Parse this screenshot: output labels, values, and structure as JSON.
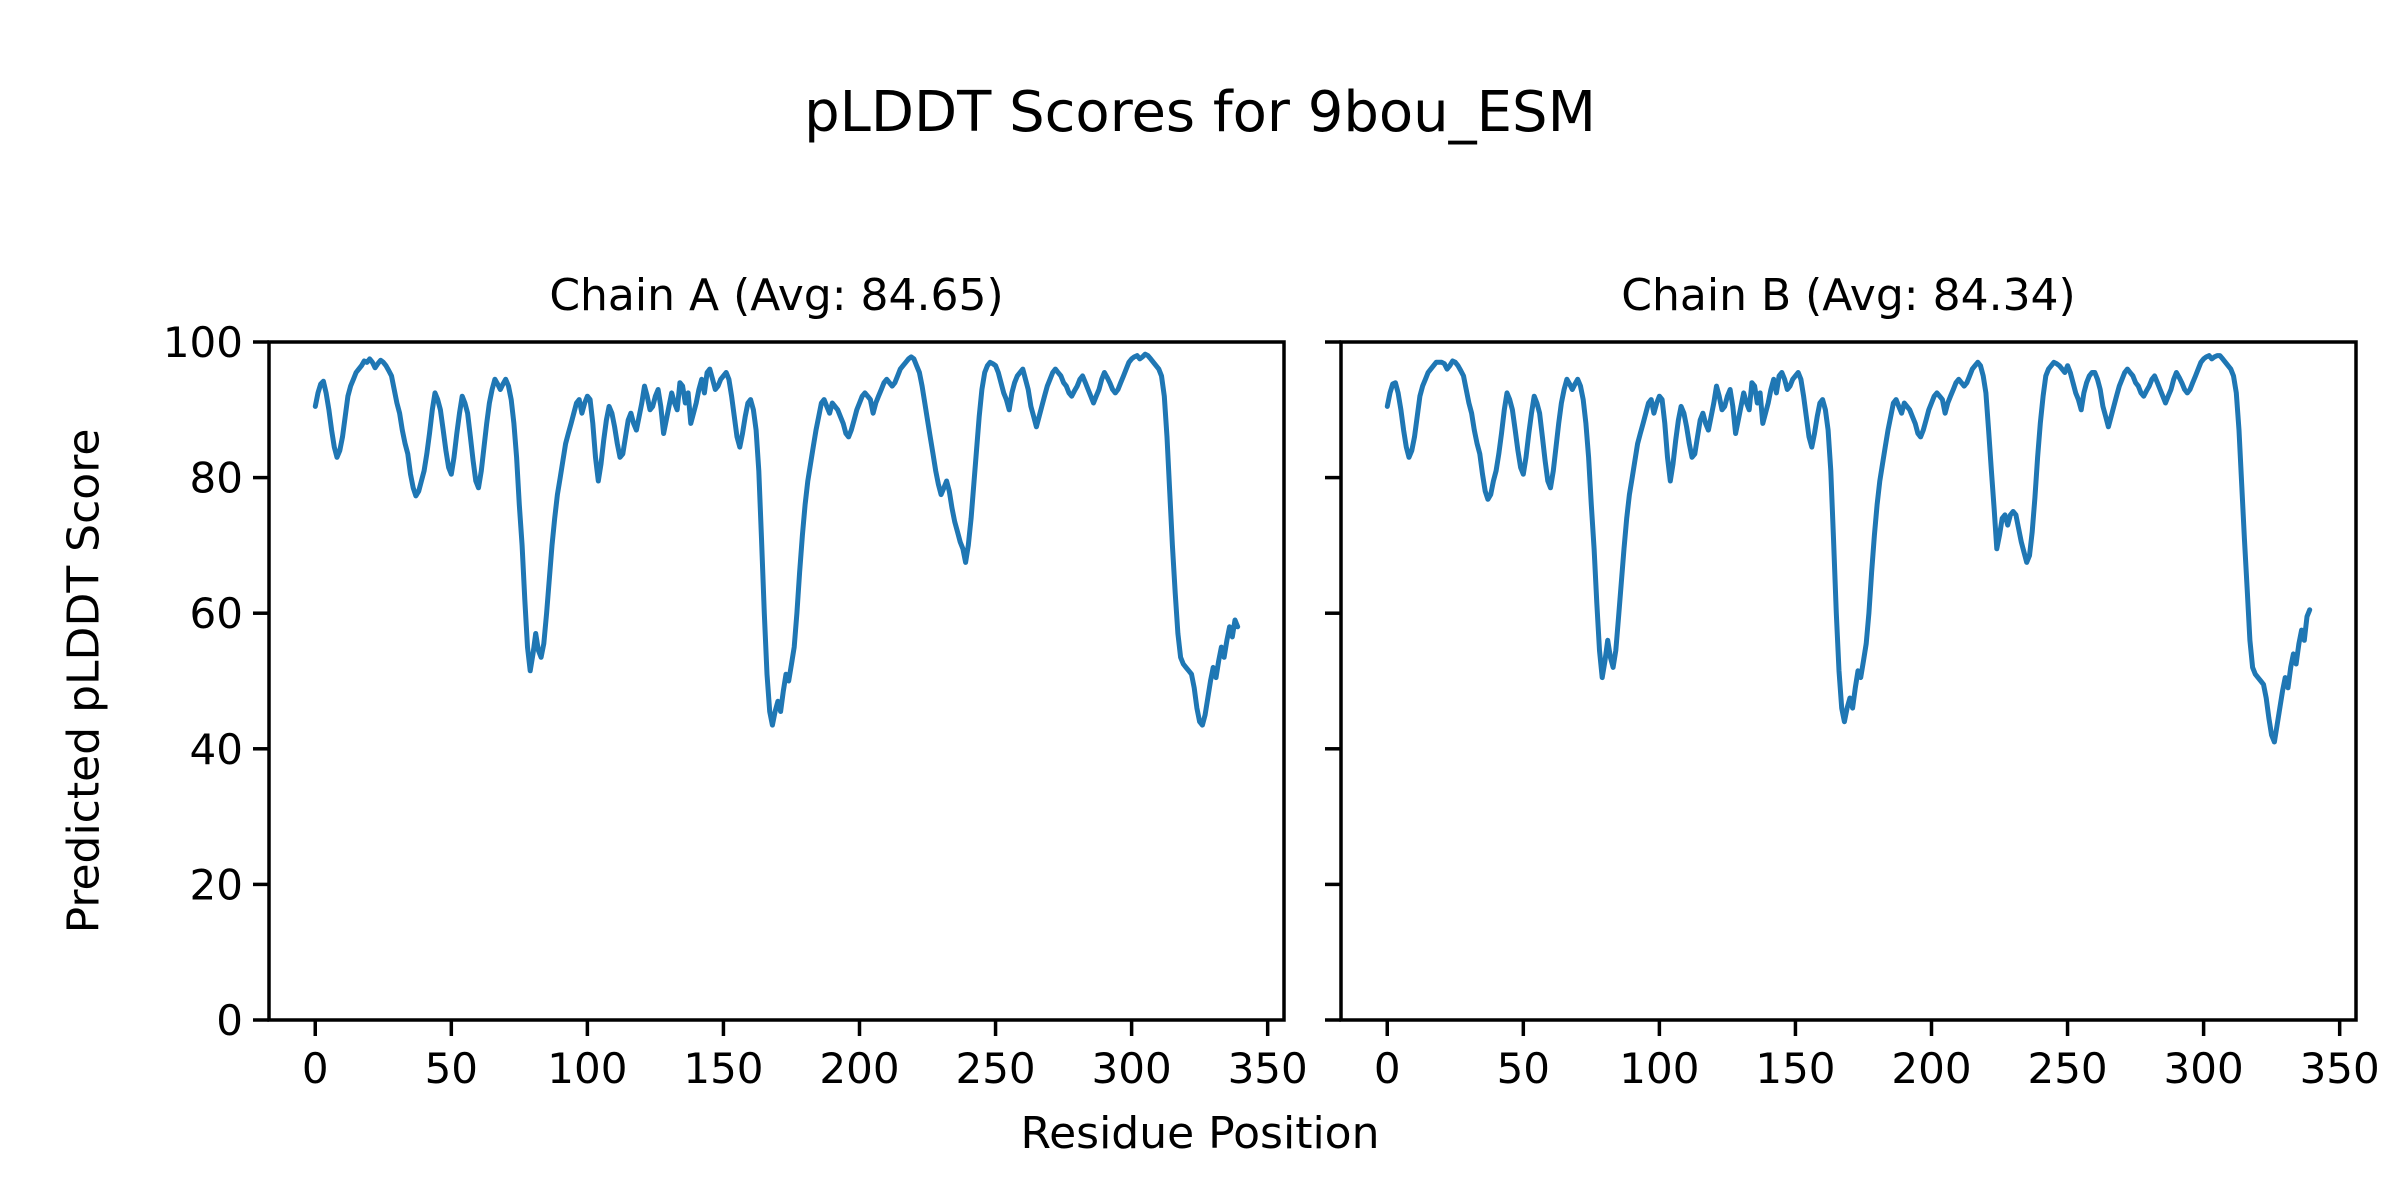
{
  "figure": {
    "title": "pLDDT Scores for 9bou_ESM",
    "xlabel": "Residue Position",
    "ylabel": "Predicted pLDDT Score"
  },
  "style": {
    "line_color": "#1f77b4",
    "axis_color": "#000000",
    "background": "#ffffff"
  },
  "axes": {
    "x_ticks": [
      0,
      50,
      100,
      150,
      200,
      250,
      300,
      350
    ],
    "y_ticks": [
      0,
      20,
      40,
      60,
      80,
      100
    ],
    "grid": false,
    "legend": "none"
  },
  "chart_data": [
    {
      "type": "line",
      "name_slug": "chain-a",
      "title": "Chain A (Avg: 84.65)",
      "average": 84.65,
      "xlabel": "Residue Position",
      "ylabel": "Predicted pLDDT Score",
      "xlim": [
        -17,
        356
      ],
      "ylim": [
        0,
        100
      ],
      "x_start": 0,
      "x_step": 1,
      "values": [
        90.5,
        92.5,
        93.8,
        94.2,
        92.5,
        90.0,
        87.0,
        84.5,
        83.0,
        84.0,
        86.0,
        89.0,
        92.0,
        93.5,
        94.5,
        95.5,
        96.0,
        96.5,
        97.2,
        97.0,
        97.5,
        97.0,
        96.2,
        96.8,
        97.3,
        97.0,
        96.5,
        95.8,
        95.0,
        93.0,
        91.0,
        89.5,
        87.0,
        85.0,
        83.5,
        80.5,
        78.5,
        77.3,
        78.0,
        79.5,
        81.0,
        83.5,
        86.5,
        90.0,
        92.5,
        91.5,
        90.0,
        87.0,
        84.0,
        81.5,
        80.5,
        83.0,
        86.5,
        89.5,
        92.0,
        91.0,
        89.5,
        86.0,
        82.5,
        79.5,
        78.5,
        81.0,
        84.5,
        88.0,
        91.0,
        93.0,
        94.5,
        93.8,
        93.0,
        93.8,
        94.5,
        93.5,
        91.5,
        88.0,
        83.0,
        76.0,
        70.0,
        62.0,
        55.0,
        51.5,
        54.0,
        57.0,
        54.5,
        53.5,
        55.5,
        60.0,
        65.0,
        70.0,
        74.0,
        77.5,
        80.0,
        82.5,
        85.0,
        86.5,
        88.0,
        89.5,
        91.0,
        91.5,
        89.5,
        91.0,
        92.0,
        91.5,
        88.0,
        83.0,
        79.5,
        82.0,
        85.5,
        88.5,
        90.5,
        89.5,
        87.5,
        85.0,
        83.0,
        83.5,
        86.0,
        88.5,
        89.5,
        88.0,
        87.0,
        89.0,
        91.0,
        93.5,
        92.0,
        90.0,
        90.5,
        92.0,
        93.0,
        90.5,
        86.5,
        88.5,
        90.5,
        92.5,
        91.0,
        90.0,
        94.0,
        93.5,
        91.0,
        92.5,
        88.0,
        89.5,
        91.0,
        93.0,
        94.5,
        92.5,
        95.5,
        96.0,
        94.5,
        93.0,
        93.5,
        94.5,
        95.0,
        95.5,
        94.5,
        92.0,
        89.0,
        86.0,
        84.5,
        86.5,
        89.0,
        91.0,
        91.5,
        90.0,
        87.0,
        81.0,
        71.0,
        60.0,
        51.0,
        45.5,
        43.5,
        45.5,
        47.0,
        45.5,
        48.5,
        51.0,
        50.0,
        52.5,
        55.0,
        60.0,
        66.0,
        71.5,
        76.0,
        79.5,
        82.0,
        84.5,
        87.0,
        89.0,
        91.0,
        91.5,
        90.5,
        89.5,
        91.0,
        90.5,
        90.0,
        89.0,
        88.0,
        86.5,
        86.0,
        87.0,
        88.5,
        90.0,
        91.0,
        92.0,
        92.5,
        92.0,
        91.5,
        89.5,
        91.0,
        92.0,
        93.0,
        94.0,
        94.5,
        94.0,
        93.5,
        94.0,
        95.0,
        96.0,
        96.5,
        97.0,
        97.5,
        97.8,
        97.5,
        96.5,
        95.5,
        93.5,
        91.0,
        88.5,
        86.0,
        83.5,
        81.0,
        79.0,
        77.5,
        78.5,
        79.5,
        78.0,
        75.5,
        73.5,
        72.0,
        70.5,
        69.5,
        67.5,
        70.0,
        74.0,
        79.0,
        84.0,
        89.0,
        93.0,
        95.5,
        96.5,
        97.0,
        96.8,
        96.5,
        95.5,
        94.0,
        92.5,
        91.5,
        90.0,
        92.5,
        94.0,
        95.0,
        95.5,
        96.0,
        94.5,
        93.0,
        90.5,
        89.0,
        87.5,
        89.0,
        90.5,
        92.0,
        93.5,
        94.5,
        95.5,
        96.0,
        95.5,
        95.0,
        94.0,
        93.5,
        92.5,
        92.0,
        92.8,
        93.5,
        94.5,
        95.0,
        94.0,
        93.0,
        92.0,
        91.0,
        92.0,
        93.0,
        94.5,
        95.5,
        94.8,
        94.0,
        93.0,
        92.5,
        93.0,
        94.0,
        95.0,
        96.0,
        97.0,
        97.5,
        97.8,
        98.0,
        97.5,
        97.8,
        98.2,
        98.0,
        97.5,
        97.0,
        96.5,
        96.0,
        95.0,
        92.0,
        86.0,
        78.0,
        70.0,
        63.0,
        57.0,
        53.5,
        52.5,
        52.0,
        51.5,
        51.0,
        49.0,
        46.0,
        44.0,
        43.5,
        45.0,
        47.5,
        50.0,
        52.0,
        50.5,
        53.0,
        55.0,
        53.5,
        56.0,
        58.0,
        56.5,
        59.0,
        58.0
      ]
    },
    {
      "type": "line",
      "name_slug": "chain-b",
      "title": "Chain B (Avg: 84.34)",
      "average": 84.34,
      "xlabel": "Residue Position",
      "ylabel": "Predicted pLDDT Score",
      "xlim": [
        -17,
        356
      ],
      "ylim": [
        0,
        100
      ],
      "x_start": 0,
      "x_step": 1,
      "values": [
        90.5,
        92.5,
        93.8,
        94.0,
        92.5,
        90.0,
        87.0,
        84.5,
        83.0,
        84.0,
        86.0,
        89.0,
        92.0,
        93.5,
        94.5,
        95.5,
        96.0,
        96.5,
        97.0,
        97.0,
        97.0,
        96.8,
        96.0,
        96.5,
        97.2,
        97.0,
        96.5,
        95.8,
        95.0,
        93.0,
        91.0,
        89.5,
        87.0,
        85.0,
        83.5,
        80.5,
        78.0,
        76.8,
        77.5,
        79.5,
        81.0,
        83.5,
        86.5,
        90.0,
        92.5,
        91.5,
        90.0,
        87.0,
        84.0,
        81.5,
        80.5,
        83.0,
        86.5,
        89.5,
        92.0,
        91.0,
        89.5,
        86.0,
        82.5,
        79.5,
        78.5,
        81.0,
        84.5,
        88.0,
        91.0,
        93.0,
        94.5,
        93.8,
        93.0,
        93.8,
        94.5,
        93.5,
        91.5,
        88.0,
        83.0,
        76.0,
        69.5,
        61.5,
        54.5,
        50.5,
        53.0,
        56.0,
        53.5,
        52.0,
        54.5,
        59.5,
        64.5,
        69.5,
        74.0,
        77.5,
        80.0,
        82.5,
        85.0,
        86.5,
        88.0,
        89.5,
        91.0,
        91.5,
        89.5,
        91.0,
        92.0,
        91.5,
        88.0,
        83.0,
        79.5,
        82.0,
        85.5,
        88.5,
        90.5,
        89.5,
        87.5,
        85.0,
        83.0,
        83.5,
        86.0,
        88.5,
        89.5,
        88.0,
        87.0,
        89.0,
        91.0,
        93.5,
        92.0,
        90.0,
        90.5,
        92.0,
        93.0,
        90.5,
        86.5,
        88.5,
        90.5,
        92.5,
        91.0,
        90.0,
        94.0,
        93.5,
        91.0,
        92.5,
        88.0,
        89.5,
        91.0,
        93.0,
        94.5,
        92.5,
        95.0,
        95.5,
        94.5,
        93.0,
        93.5,
        94.5,
        95.0,
        95.5,
        94.5,
        92.0,
        89.0,
        86.0,
        84.5,
        86.5,
        89.0,
        91.0,
        91.5,
        90.0,
        87.0,
        81.0,
        71.0,
        60.0,
        51.5,
        46.0,
        44.0,
        46.0,
        47.5,
        46.0,
        49.0,
        51.5,
        50.5,
        53.0,
        55.5,
        60.0,
        66.0,
        71.5,
        76.0,
        79.5,
        82.0,
        84.5,
        87.0,
        89.0,
        91.0,
        91.5,
        90.5,
        89.5,
        91.0,
        90.5,
        90.0,
        89.0,
        88.0,
        86.5,
        86.0,
        87.0,
        88.5,
        90.0,
        91.0,
        92.0,
        92.5,
        92.0,
        91.5,
        89.5,
        91.0,
        92.0,
        93.0,
        94.0,
        94.5,
        94.0,
        93.5,
        94.0,
        95.0,
        96.0,
        96.5,
        97.0,
        96.5,
        95.0,
        92.5,
        87.0,
        81.0,
        75.5,
        69.5,
        71.5,
        74.0,
        74.5,
        73.0,
        74.5,
        75.0,
        74.5,
        72.5,
        70.5,
        69.0,
        67.5,
        68.5,
        72.0,
        77.0,
        83.0,
        88.0,
        92.0,
        95.0,
        96.0,
        96.5,
        97.0,
        96.8,
        96.5,
        96.0,
        95.5,
        96.5,
        95.5,
        94.0,
        92.5,
        91.5,
        90.0,
        92.5,
        94.0,
        95.0,
        95.5,
        95.5,
        94.5,
        93.0,
        90.5,
        89.0,
        87.5,
        89.0,
        90.5,
        92.0,
        93.5,
        94.5,
        95.5,
        96.0,
        95.5,
        95.0,
        94.0,
        93.5,
        92.5,
        92.0,
        92.8,
        93.5,
        94.5,
        95.0,
        94.0,
        93.0,
        92.0,
        91.0,
        92.0,
        93.0,
        94.5,
        95.5,
        94.8,
        94.0,
        93.0,
        92.5,
        93.0,
        94.0,
        95.0,
        96.0,
        97.0,
        97.5,
        97.8,
        98.0,
        97.5,
        97.8,
        98.0,
        98.0,
        97.5,
        97.0,
        96.5,
        96.0,
        95.0,
        92.5,
        87.0,
        79.0,
        71.0,
        63.5,
        56.0,
        52.0,
        51.0,
        50.5,
        50.0,
        49.5,
        47.5,
        44.5,
        42.0,
        41.0,
        43.5,
        46.0,
        48.5,
        50.5,
        49.0,
        52.0,
        54.0,
        52.5,
        55.5,
        57.5,
        56.0,
        59.5,
        60.5
      ]
    }
  ]
}
